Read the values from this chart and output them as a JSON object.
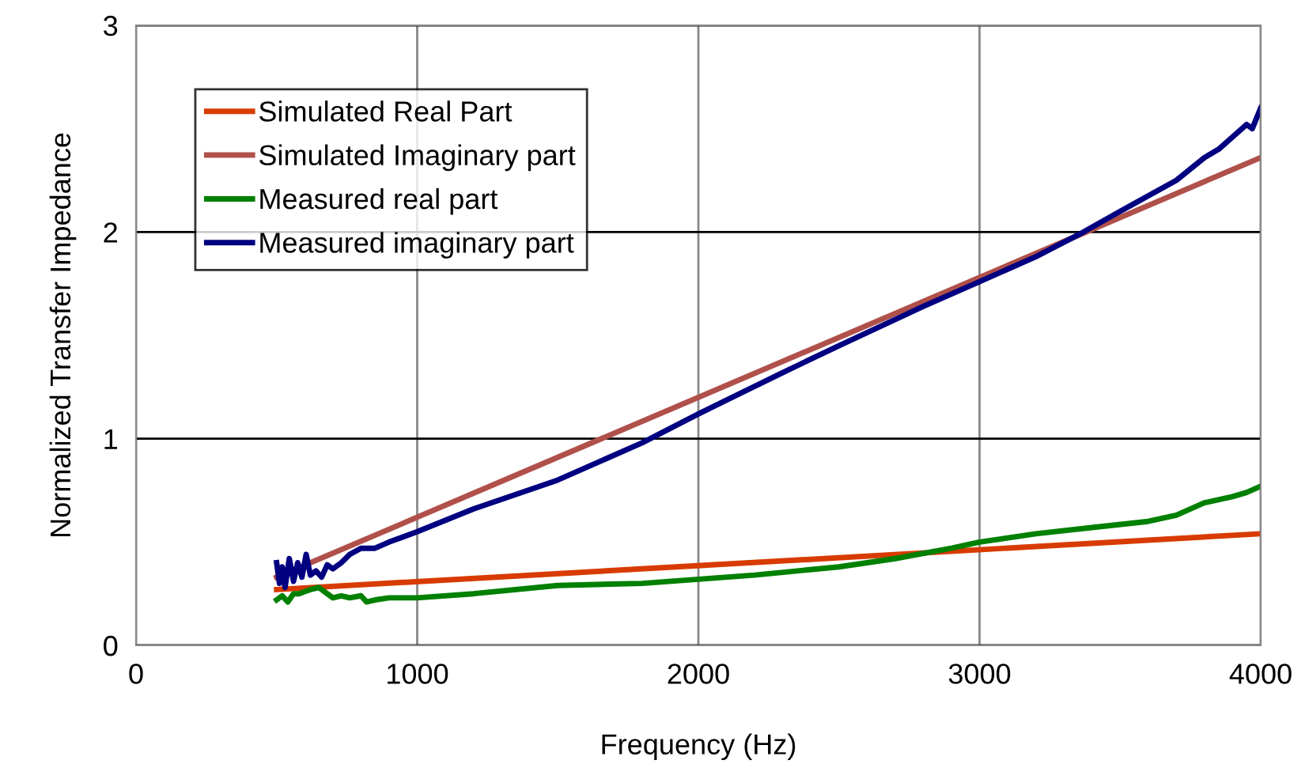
{
  "chart_data": {
    "type": "line",
    "xlabel": "Frequency (Hz)",
    "ylabel": "Normalized Transfer Impedance",
    "xlim": [
      0,
      4000
    ],
    "xticks": [
      0,
      1000,
      2000,
      3000,
      4000
    ],
    "ylim": [
      0,
      3
    ],
    "yticks": [
      0,
      1,
      2,
      3
    ],
    "grid": true,
    "legend": "top left",
    "marker": "none",
    "line_style": "solid",
    "series": [
      {
        "name": "Simulated Real Part",
        "color": "#d83b01",
        "x": [
          500,
          4000
        ],
        "values": [
          0.27,
          0.54
        ]
      },
      {
        "name": "Simulated Imaginary part",
        "color": "#b0504a",
        "x": [
          500,
          4000
        ],
        "values": [
          0.33,
          2.36
        ]
      },
      {
        "name": "Measured real part",
        "color": "#008000",
        "x": [
          500,
          520,
          540,
          560,
          580,
          600,
          620,
          650,
          680,
          700,
          730,
          760,
          800,
          820,
          850,
          900,
          1000,
          1200,
          1500,
          1800,
          2000,
          2200,
          2500,
          2700,
          2900,
          3000,
          3200,
          3400,
          3600,
          3700,
          3800,
          3900,
          3950,
          4000
        ],
        "values": [
          0.22,
          0.24,
          0.21,
          0.25,
          0.25,
          0.26,
          0.27,
          0.28,
          0.25,
          0.23,
          0.24,
          0.23,
          0.24,
          0.21,
          0.22,
          0.23,
          0.23,
          0.25,
          0.29,
          0.3,
          0.32,
          0.34,
          0.38,
          0.42,
          0.47,
          0.5,
          0.54,
          0.57,
          0.6,
          0.63,
          0.69,
          0.72,
          0.74,
          0.77
        ]
      },
      {
        "name": "Measured imaginary part",
        "color": "#000080",
        "x": [
          500,
          510,
          520,
          530,
          545,
          560,
          575,
          590,
          605,
          620,
          640,
          660,
          680,
          700,
          730,
          760,
          800,
          850,
          900,
          1000,
          1200,
          1500,
          1800,
          2000,
          2300,
          2500,
          2800,
          3000,
          3200,
          3370,
          3500,
          3700,
          3800,
          3850,
          3900,
          3950,
          3970,
          4000
        ],
        "values": [
          0.4,
          0.3,
          0.38,
          0.28,
          0.42,
          0.31,
          0.4,
          0.33,
          0.44,
          0.34,
          0.36,
          0.33,
          0.39,
          0.37,
          0.4,
          0.44,
          0.47,
          0.47,
          0.5,
          0.55,
          0.66,
          0.8,
          0.98,
          1.12,
          1.32,
          1.45,
          1.64,
          1.76,
          1.88,
          2.0,
          2.1,
          2.25,
          2.36,
          2.4,
          2.46,
          2.52,
          2.5,
          2.6
        ]
      }
    ]
  }
}
